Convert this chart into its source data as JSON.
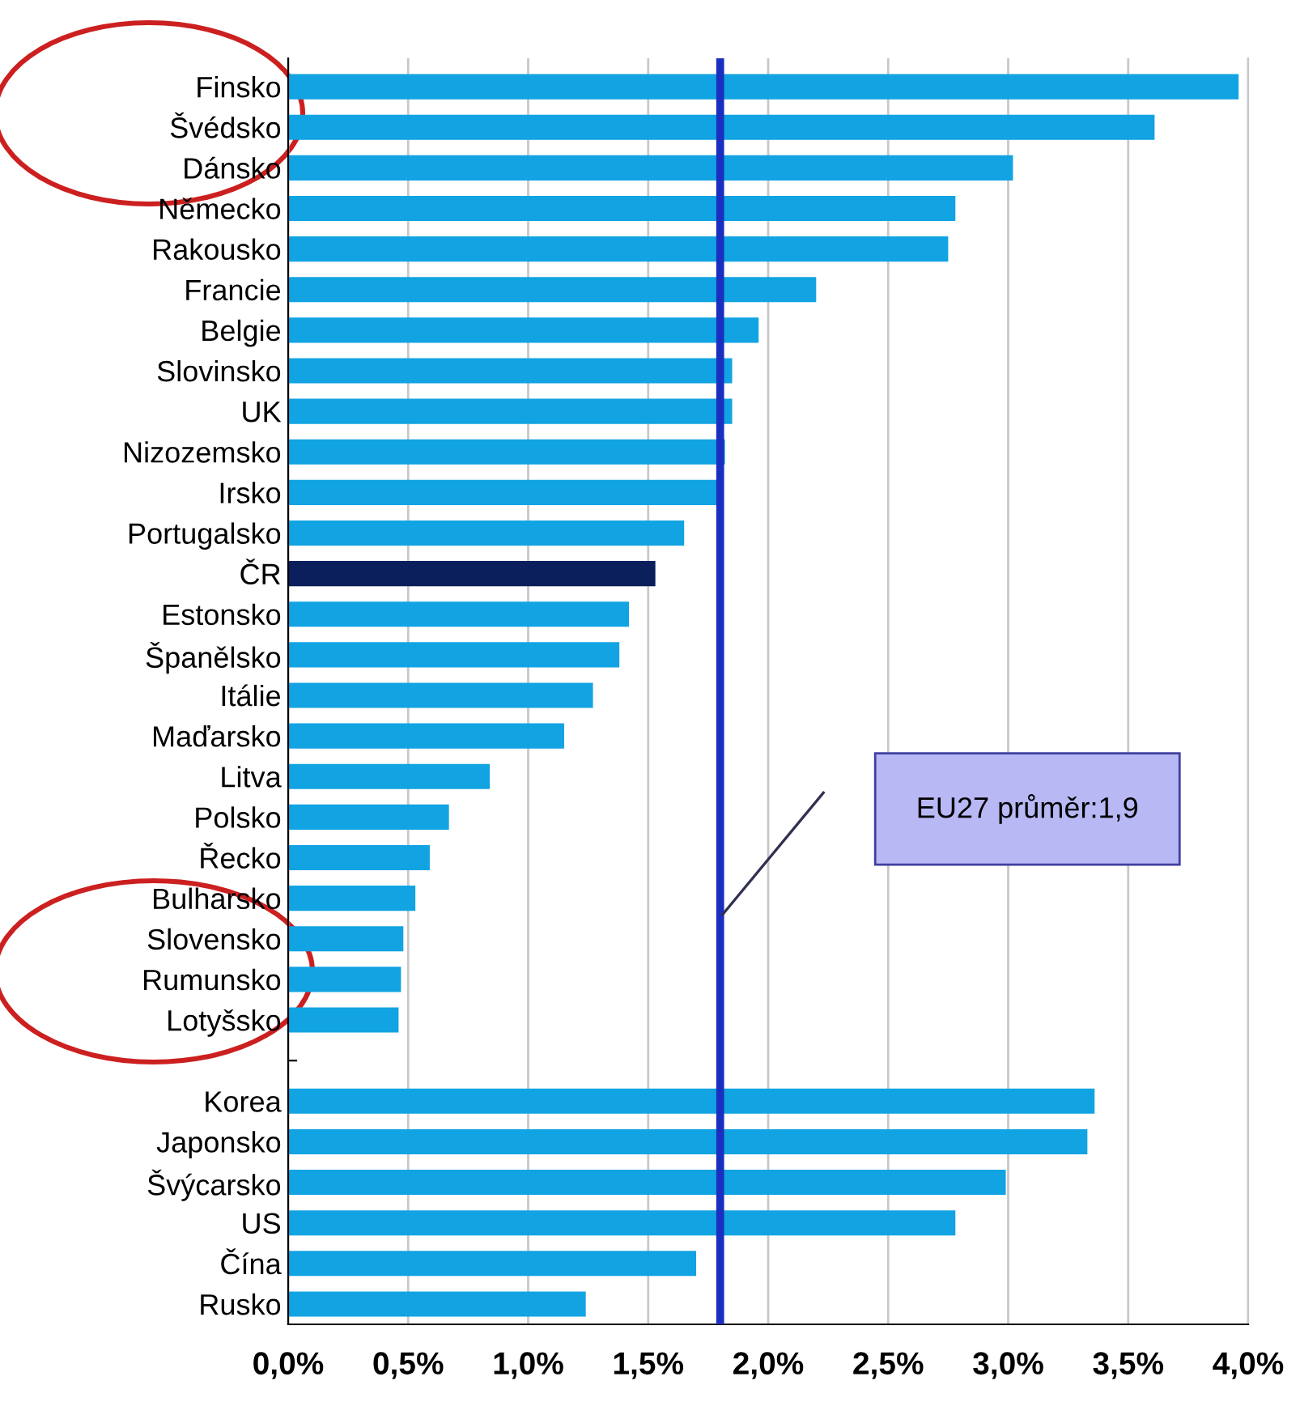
{
  "chart_data": {
    "type": "bar",
    "orientation": "horizontal",
    "categories": [
      "Finsko",
      "Švédsko",
      "Dánsko",
      "Německo",
      "Rakousko",
      "Francie",
      "Belgie",
      "Slovinsko",
      "UK",
      "Nizozemsko",
      "Irsko",
      "Portugalsko",
      "ČR",
      "Estonsko",
      "Španělsko",
      "Itálie",
      "Maďarsko",
      "Litva",
      "Polsko",
      "Řecko",
      "Bulharsko",
      "Slovensko",
      "Rumunsko",
      "Lotyšsko",
      null,
      "Korea",
      "Japonsko",
      "Švýcarsko",
      "US",
      "Čína",
      "Rusko"
    ],
    "values": [
      3.96,
      3.61,
      3.02,
      2.78,
      2.75,
      2.2,
      1.96,
      1.85,
      1.85,
      1.82,
      1.81,
      1.65,
      1.53,
      1.42,
      1.38,
      1.27,
      1.15,
      0.84,
      0.67,
      0.59,
      0.53,
      0.48,
      0.47,
      0.46,
      null,
      3.36,
      3.33,
      2.99,
      2.78,
      1.7,
      1.24
    ],
    "colors": [
      "#12a3e3",
      "#12a3e3",
      "#12a3e3",
      "#12a3e3",
      "#12a3e3",
      "#12a3e3",
      "#12a3e3",
      "#12a3e3",
      "#12a3e3",
      "#12a3e3",
      "#12a3e3",
      "#12a3e3",
      "#0a1f5c",
      "#12a3e3",
      "#12a3e3",
      "#12a3e3",
      "#12a3e3",
      "#12a3e3",
      "#12a3e3",
      "#12a3e3",
      "#12a3e3",
      "#12a3e3",
      "#12a3e3",
      "#12a3e3",
      "#12a3e3",
      "#12a3e3",
      "#12a3e3",
      "#12a3e3",
      "#12a3e3",
      "#12a3e3",
      "#12a3e3"
    ],
    "xlim": [
      0,
      4.0
    ],
    "xticks": [
      {
        "value": 0,
        "label": "0,0%"
      },
      {
        "value": 0.5,
        "label": "0,5%"
      },
      {
        "value": 1.0,
        "label": "1,0%"
      },
      {
        "value": 1.5,
        "label": "1,5%"
      },
      {
        "value": 2.0,
        "label": "2,0%"
      },
      {
        "value": 2.5,
        "label": "2,5%"
      },
      {
        "value": 3.0,
        "label": "3,0%"
      },
      {
        "value": 3.5,
        "label": "3,5%"
      },
      {
        "value": 4.0,
        "label": "4,0%"
      }
    ],
    "grid": "x",
    "ref_lines": [
      {
        "axis": "x",
        "value": 1.8,
        "color": "#1a2fbf"
      }
    ],
    "annotations": [
      "EU27 průměr:1,9"
    ]
  }
}
